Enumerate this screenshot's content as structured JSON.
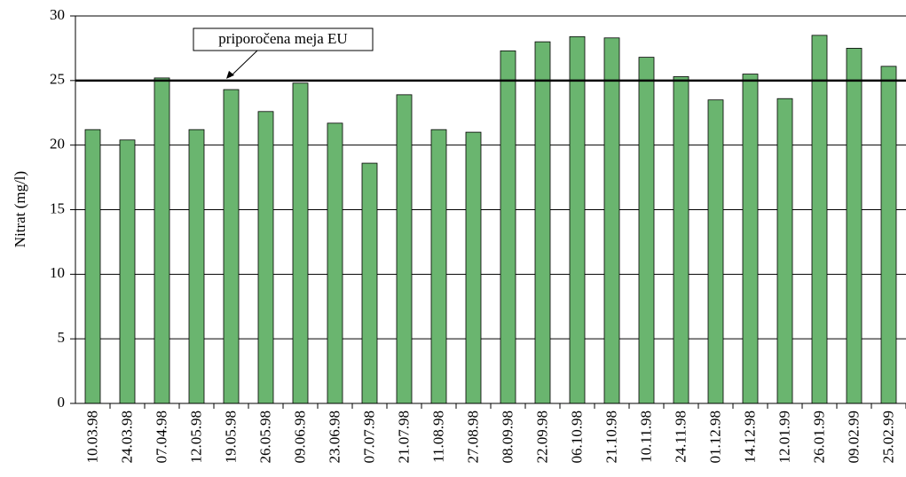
{
  "chart_data": {
    "type": "bar",
    "y_label": "Nitrat (mg/l)",
    "categories": [
      "10.03.98",
      "24.03.98",
      "07.04.98",
      "12.05.98",
      "19.05.98",
      "26.05.98",
      "09.06.98",
      "23.06.98",
      "07.07.98",
      "21.07.98",
      "11.08.98",
      "27.08.98",
      "08.09.98",
      "22.09.98",
      "06.10.98",
      "21.10.98",
      "10.11.98",
      "24.11.98",
      "01.12.98",
      "14.12.98",
      "12.01.99",
      "26.01.99",
      "09.02.99",
      "25.02.99"
    ],
    "values": [
      21.2,
      20.4,
      25.2,
      21.2,
      24.3,
      22.6,
      24.8,
      21.7,
      18.6,
      23.9,
      21.2,
      21.0,
      27.3,
      28.0,
      28.4,
      28.3,
      26.8,
      25.3,
      23.5,
      25.5,
      23.6,
      28.5,
      27.5,
      26.1
    ],
    "color": "#6ab56f",
    "ylim": [
      0,
      30
    ],
    "yticks": [
      0,
      5,
      10,
      15,
      20,
      25,
      30
    ],
    "grid": true,
    "reference_line": {
      "value": 25,
      "label": "priporočena meja EU"
    }
  }
}
